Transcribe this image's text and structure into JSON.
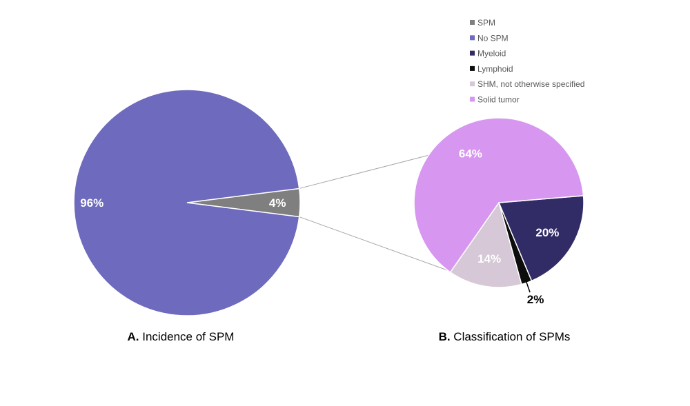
{
  "chart_data": [
    {
      "type": "pie",
      "caption_letter": "A.",
      "caption_text": "Incidence of SPM",
      "slices": [
        {
          "name": "SPM",
          "value": 4,
          "label": "4%",
          "color": "#7f7f7f",
          "label_color": "#ffffff"
        },
        {
          "name": "No SPM",
          "value": 96,
          "label": "96%",
          "color": "#6e6abd",
          "label_color": "#ffffff"
        }
      ]
    },
    {
      "type": "pie",
      "caption_letter": "B.",
      "caption_text": "Classification of SPMs",
      "slices": [
        {
          "name": "Myeloid",
          "value": 20,
          "label": "20%",
          "color": "#322c66",
          "label_color": "#ffffff"
        },
        {
          "name": "Lymphoid",
          "value": 2,
          "label": "2%",
          "color": "#0d0d0d",
          "label_color": "#000000"
        },
        {
          "name": "SHM, not otherwise specified",
          "value": 14,
          "label": "14%",
          "color": "#d6c8d6",
          "label_color": "#ffffff"
        },
        {
          "name": "Solid tumor",
          "value": 64,
          "label": "64%",
          "color": "#d797f0",
          "label_color": "#ffffff"
        }
      ]
    }
  ],
  "legend": [
    {
      "name": "SPM",
      "color": "#7f7f7f"
    },
    {
      "name": "No SPM",
      "color": "#6e6abd"
    },
    {
      "name": "Myeloid",
      "color": "#322c66"
    },
    {
      "name": "Lymphoid",
      "color": "#0d0d0d"
    },
    {
      "name": "SHM, not otherwise specified",
      "color": "#d6c8d6"
    },
    {
      "name": "Solid tumor",
      "color": "#d797f0"
    }
  ]
}
